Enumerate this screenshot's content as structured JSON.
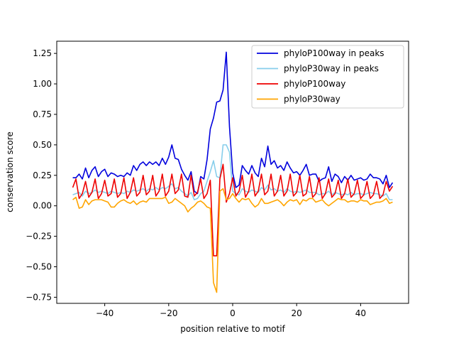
{
  "chart_data": {
    "type": "line",
    "title": "",
    "xlabel": "position relative to motif",
    "ylabel": "conservation score",
    "xlim": [
      -55,
      55
    ],
    "ylim": [
      -0.8,
      1.35
    ],
    "xticks": [
      -40,
      -20,
      0,
      20,
      40
    ],
    "xtick_labels": [
      "−40",
      "−20",
      "0",
      "20",
      "40"
    ],
    "yticks": [
      -0.75,
      -0.5,
      -0.25,
      0.0,
      0.25,
      0.5,
      0.75,
      1.0,
      1.25
    ],
    "ytick_labels": [
      "−0.75",
      "−0.50",
      "−0.25",
      "0.00",
      "0.25",
      "0.50",
      "0.75",
      "1.00",
      "1.25"
    ],
    "legend_position": "top-right",
    "series": [
      {
        "name": "phyloP100way in peaks",
        "color": "#0000dd",
        "x": [
          -50,
          -49,
          -48,
          -47,
          -46,
          -45,
          -44,
          -43,
          -42,
          -41,
          -40,
          -39,
          -38,
          -37,
          -36,
          -35,
          -34,
          -33,
          -32,
          -31,
          -30,
          -29,
          -28,
          -27,
          -26,
          -25,
          -24,
          -23,
          -22,
          -21,
          -20,
          -19,
          -18,
          -17,
          -16,
          -15,
          -14,
          -13,
          -12,
          -11,
          -10,
          -9,
          -8,
          -7,
          -6,
          -5,
          -4,
          -3,
          -2,
          -1,
          0,
          1,
          2,
          3,
          4,
          5,
          6,
          7,
          8,
          9,
          10,
          11,
          12,
          13,
          14,
          15,
          16,
          17,
          18,
          19,
          20,
          21,
          22,
          23,
          24,
          25,
          26,
          27,
          28,
          29,
          30,
          31,
          32,
          33,
          34,
          35,
          36,
          37,
          38,
          39,
          40,
          41,
          42,
          43,
          44,
          45,
          46,
          47,
          48,
          49,
          50
        ],
        "values": [
          0.23,
          0.23,
          0.26,
          0.22,
          0.31,
          0.23,
          0.29,
          0.32,
          0.24,
          0.28,
          0.3,
          0.24,
          0.27,
          0.26,
          0.24,
          0.25,
          0.24,
          0.27,
          0.25,
          0.33,
          0.29,
          0.34,
          0.36,
          0.33,
          0.36,
          0.34,
          0.36,
          0.33,
          0.39,
          0.34,
          0.4,
          0.5,
          0.39,
          0.38,
          0.3,
          0.25,
          0.21,
          0.28,
          0.12,
          0.1,
          0.24,
          0.22,
          0.38,
          0.63,
          0.72,
          0.85,
          0.86,
          0.95,
          1.26,
          0.65,
          0.27,
          0.15,
          0.17,
          0.33,
          0.29,
          0.26,
          0.33,
          0.27,
          0.24,
          0.39,
          0.32,
          0.49,
          0.34,
          0.37,
          0.31,
          0.33,
          0.29,
          0.36,
          0.31,
          0.27,
          0.28,
          0.25,
          0.29,
          0.34,
          0.25,
          0.26,
          0.26,
          0.2,
          0.22,
          0.23,
          0.32,
          0.2,
          0.26,
          0.24,
          0.19,
          0.24,
          0.21,
          0.25,
          0.21,
          0.22,
          0.23,
          0.21,
          0.22,
          0.26,
          0.23,
          0.23,
          0.22,
          0.18,
          0.25,
          0.15,
          0.19
        ]
      },
      {
        "name": "phyloP30way in peaks",
        "color": "#87ceeb",
        "x": [
          -50,
          -49,
          -48,
          -47,
          -46,
          -45,
          -44,
          -43,
          -42,
          -41,
          -40,
          -39,
          -38,
          -37,
          -36,
          -35,
          -34,
          -33,
          -32,
          -31,
          -30,
          -29,
          -28,
          -27,
          -26,
          -25,
          -24,
          -23,
          -22,
          -21,
          -20,
          -19,
          -18,
          -17,
          -16,
          -15,
          -14,
          -13,
          -12,
          -11,
          -10,
          -9,
          -8,
          -7,
          -6,
          -5,
          -4,
          -3,
          -2,
          -1,
          0,
          1,
          2,
          3,
          4,
          5,
          6,
          7,
          8,
          9,
          10,
          11,
          12,
          13,
          14,
          15,
          16,
          17,
          18,
          19,
          20,
          21,
          22,
          23,
          24,
          25,
          26,
          27,
          28,
          29,
          30,
          31,
          32,
          33,
          34,
          35,
          36,
          37,
          38,
          39,
          40,
          41,
          42,
          43,
          44,
          45,
          46,
          47,
          48,
          49,
          50
        ],
        "values": [
          0.09,
          0.1,
          0.11,
          0.08,
          0.12,
          0.1,
          0.11,
          0.13,
          0.11,
          0.12,
          0.11,
          0.1,
          0.12,
          0.11,
          0.1,
          0.11,
          0.1,
          0.12,
          0.11,
          0.13,
          0.12,
          0.13,
          0.14,
          0.12,
          0.14,
          0.13,
          0.15,
          0.13,
          0.15,
          0.14,
          0.16,
          0.18,
          0.14,
          0.15,
          0.12,
          0.1,
          0.08,
          0.11,
          0.05,
          0.06,
          0.1,
          0.12,
          0.2,
          0.28,
          0.37,
          0.24,
          0.23,
          0.5,
          0.5,
          0.44,
          0.12,
          0.1,
          0.09,
          0.14,
          0.12,
          0.11,
          0.13,
          0.12,
          0.11,
          0.15,
          0.13,
          0.17,
          0.13,
          0.14,
          0.12,
          0.13,
          0.11,
          0.14,
          0.12,
          0.11,
          0.12,
          0.11,
          0.12,
          0.13,
          0.11,
          0.11,
          0.11,
          0.09,
          0.1,
          0.1,
          0.12,
          0.09,
          0.11,
          0.1,
          0.09,
          0.1,
          0.09,
          0.11,
          0.09,
          0.1,
          0.1,
          0.09,
          0.1,
          0.11,
          0.1,
          0.1,
          0.09,
          0.08,
          0.1,
          0.05,
          0.05
        ]
      },
      {
        "name": "phyloP100way",
        "color": "#ee0000",
        "x": [
          -50,
          -49,
          -48,
          -47,
          -46,
          -45,
          -44,
          -43,
          -42,
          -41,
          -40,
          -39,
          -38,
          -37,
          -36,
          -35,
          -34,
          -33,
          -32,
          -31,
          -30,
          -29,
          -28,
          -27,
          -26,
          -25,
          -24,
          -23,
          -22,
          -21,
          -20,
          -19,
          -18,
          -17,
          -16,
          -15,
          -14,
          -13,
          -12,
          -11,
          -10,
          -9,
          -8,
          -7,
          -6,
          -5,
          -4,
          -3,
          -2,
          -1,
          0,
          1,
          2,
          3,
          4,
          5,
          6,
          7,
          8,
          9,
          10,
          11,
          12,
          13,
          14,
          15,
          16,
          17,
          18,
          19,
          20,
          21,
          22,
          23,
          24,
          25,
          26,
          27,
          28,
          29,
          30,
          31,
          32,
          33,
          34,
          35,
          36,
          37,
          38,
          39,
          40,
          41,
          42,
          43,
          44,
          45,
          46,
          47,
          48,
          49,
          50
        ],
        "values": [
          0.15,
          0.22,
          0.06,
          0.1,
          0.2,
          0.07,
          0.11,
          0.22,
          0.06,
          0.1,
          0.21,
          0.08,
          0.1,
          0.22,
          0.07,
          0.1,
          0.23,
          0.06,
          0.11,
          0.23,
          0.08,
          0.11,
          0.25,
          0.09,
          0.12,
          0.25,
          0.08,
          0.12,
          0.26,
          0.08,
          0.12,
          0.26,
          0.1,
          0.13,
          0.26,
          0.08,
          0.07,
          0.25,
          0.08,
          0.11,
          0.22,
          0.06,
          0.1,
          0.21,
          -0.41,
          -0.41,
          0.22,
          0.34,
          0.03,
          0.1,
          0.23,
          0.08,
          0.12,
          0.25,
          0.07,
          0.12,
          0.26,
          0.08,
          0.12,
          0.26,
          0.09,
          0.12,
          0.26,
          0.08,
          0.12,
          0.25,
          0.08,
          0.12,
          0.26,
          0.08,
          0.11,
          0.25,
          0.08,
          0.1,
          0.24,
          0.07,
          0.1,
          0.23,
          0.06,
          0.1,
          0.22,
          0.07,
          0.1,
          0.21,
          0.06,
          0.1,
          0.22,
          0.07,
          0.1,
          0.21,
          0.06,
          0.09,
          0.2,
          0.06,
          0.09,
          0.2,
          0.06,
          0.09,
          0.2,
          0.12,
          0.16
        ]
      },
      {
        "name": "phyloP30way",
        "color": "#ffa500",
        "x": [
          -50,
          -49,
          -48,
          -47,
          -46,
          -45,
          -44,
          -43,
          -42,
          -41,
          -40,
          -39,
          -38,
          -37,
          -36,
          -35,
          -34,
          -33,
          -32,
          -31,
          -30,
          -29,
          -28,
          -27,
          -26,
          -25,
          -24,
          -23,
          -22,
          -21,
          -20,
          -19,
          -18,
          -17,
          -16,
          -15,
          -14,
          -13,
          -12,
          -11,
          -10,
          -9,
          -8,
          -7,
          -6,
          -5,
          -4,
          -3,
          -2,
          -1,
          0,
          1,
          2,
          3,
          4,
          5,
          6,
          7,
          8,
          9,
          10,
          11,
          12,
          13,
          14,
          15,
          16,
          17,
          18,
          19,
          20,
          21,
          22,
          23,
          24,
          25,
          26,
          27,
          28,
          29,
          30,
          31,
          32,
          33,
          34,
          35,
          36,
          37,
          38,
          39,
          40,
          41,
          42,
          43,
          44,
          45,
          46,
          47,
          48,
          49,
          50
        ],
        "values": [
          0.05,
          0.07,
          -0.02,
          -0.01,
          0.05,
          0.01,
          0.04,
          0.05,
          0.05,
          0.05,
          0.04,
          0.03,
          -0.01,
          -0.01,
          0.02,
          0.04,
          0.05,
          0.03,
          0.02,
          0.04,
          0.01,
          0.03,
          0.04,
          0.03,
          0.06,
          0.06,
          0.06,
          0.06,
          0.06,
          0.07,
          0.02,
          0.03,
          0.06,
          0.04,
          0.02,
          0.0,
          -0.05,
          -0.02,
          0.0,
          0.03,
          0.04,
          0.02,
          -0.01,
          -0.02,
          -0.63,
          -0.71,
          0.12,
          0.14,
          0.05,
          0.06,
          0.1,
          0.06,
          0.03,
          0.06,
          0.05,
          0.06,
          0.02,
          -0.01,
          0.01,
          0.06,
          0.02,
          0.02,
          0.03,
          0.04,
          0.05,
          0.03,
          0.0,
          0.03,
          0.05,
          0.04,
          0.05,
          0.01,
          0.05,
          0.04,
          0.06,
          0.06,
          0.03,
          0.04,
          0.05,
          0.02,
          0.0,
          0.02,
          0.04,
          0.06,
          0.05,
          0.05,
          0.03,
          0.04,
          0.04,
          0.03,
          0.05,
          0.04,
          0.04,
          0.01,
          0.02,
          0.03,
          0.03,
          0.04,
          0.06,
          0.02,
          0.03
        ]
      }
    ]
  }
}
